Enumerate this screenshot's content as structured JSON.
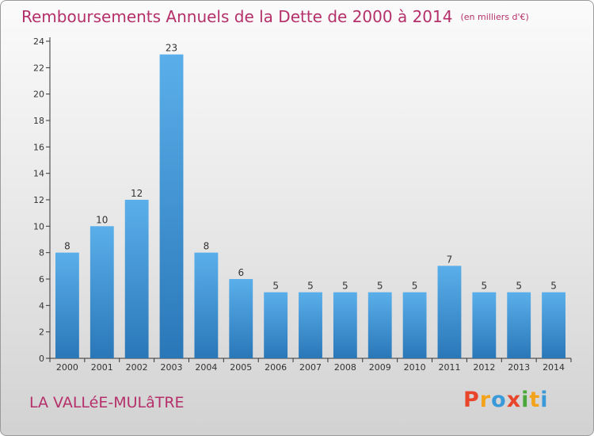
{
  "header": {
    "title": "Remboursements Annuels de la Dette de 2000 à 2014",
    "unit": "(en milliers d'€)"
  },
  "footer": {
    "commune": "LA VALLéE-MULâTRE",
    "logo_text": "Proxiti"
  },
  "colors": {
    "title": "#b5306a",
    "bar_light": "#5aafea",
    "bar_dark": "#2a77b8",
    "logo_letters": [
      "#e8452a",
      "#f2a31a",
      "#3a9ad9",
      "#e8452a",
      "#4aa83a",
      "#f2a31a",
      "#3a9ad9"
    ]
  },
  "chart_data": {
    "type": "bar",
    "title": "Remboursements Annuels de la Dette de 2000 à 2014",
    "xlabel": "",
    "ylabel": "",
    "categories": [
      "2000",
      "2001",
      "2002",
      "2003",
      "2004",
      "2005",
      "2006",
      "2007",
      "2008",
      "2009",
      "2010",
      "2011",
      "2012",
      "2013",
      "2014"
    ],
    "values": [
      8,
      10,
      12,
      23,
      8,
      6,
      5,
      5,
      5,
      5,
      5,
      7,
      5,
      5,
      5
    ],
    "data_labels": [
      "8",
      "10",
      "12",
      "23",
      "8",
      "6",
      "5",
      "5",
      "5",
      "5",
      "5",
      "7",
      "5",
      "5",
      "5"
    ],
    "ylim": [
      0,
      24
    ],
    "yticks": [
      0,
      2,
      4,
      6,
      8,
      10,
      12,
      14,
      16,
      18,
      20,
      22,
      24
    ],
    "grid": false,
    "legend": "none"
  }
}
